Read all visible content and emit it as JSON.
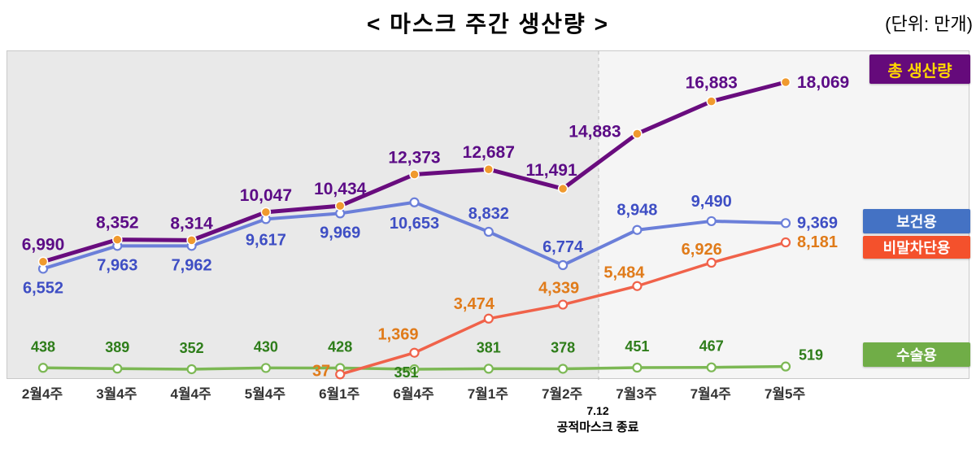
{
  "header": {
    "title": "< 마스크 주간 생산량 >",
    "unit": "(단위: 만개)"
  },
  "chart_data": {
    "type": "line",
    "title": "마스크 주간 생산량",
    "unit_label": "(단위: 만개)",
    "legend_position": "right",
    "grid": false,
    "ylim": [
      0,
      18500
    ],
    "categories": [
      "2월4주",
      "3월4주",
      "4월4주",
      "5월4주",
      "6월1주",
      "6월4주",
      "7월1주",
      "7월2주",
      "7월3주",
      "7월4주",
      "7월5주"
    ],
    "series": [
      {
        "name": "총 생산량",
        "color": "#690c7e",
        "label_color": "#5c0c86",
        "marker_fill": "#f09a2e",
        "legend_bg": "#650a7b",
        "legend_text": "#ffd700",
        "values": [
          6990,
          8352,
          8314,
          10047,
          10434,
          12373,
          12687,
          11491,
          14883,
          16883,
          18069
        ]
      },
      {
        "name": "보건용",
        "color": "#6b7fd9",
        "label_color": "#3e4ec4",
        "marker_fill": "#ffffff",
        "legend_bg": "#4472c4",
        "legend_text": "#ffffff",
        "values": [
          6552,
          7963,
          7962,
          9617,
          9969,
          10653,
          8832,
          6774,
          8948,
          9490,
          9369
        ]
      },
      {
        "name": "비말차단용",
        "color": "#f0624a",
        "label_color": "#e07b1a",
        "marker_fill": "#ffffff",
        "legend_bg": "#f4512c",
        "legend_text": "#ffffff",
        "values": [
          null,
          null,
          null,
          null,
          37,
          1369,
          3474,
          4339,
          5484,
          6926,
          8181
        ]
      },
      {
        "name": "수술용",
        "color": "#7cb854",
        "label_color": "#2e7d1a",
        "marker_fill": "#ffffff",
        "legend_bg": "#70ad47",
        "legend_text": "#ffffff",
        "values": [
          438,
          389,
          352,
          430,
          428,
          351,
          381,
          378,
          451,
          467,
          519
        ]
      }
    ],
    "annotation": {
      "date": "7.12",
      "text": "공적마스크 종료"
    }
  }
}
